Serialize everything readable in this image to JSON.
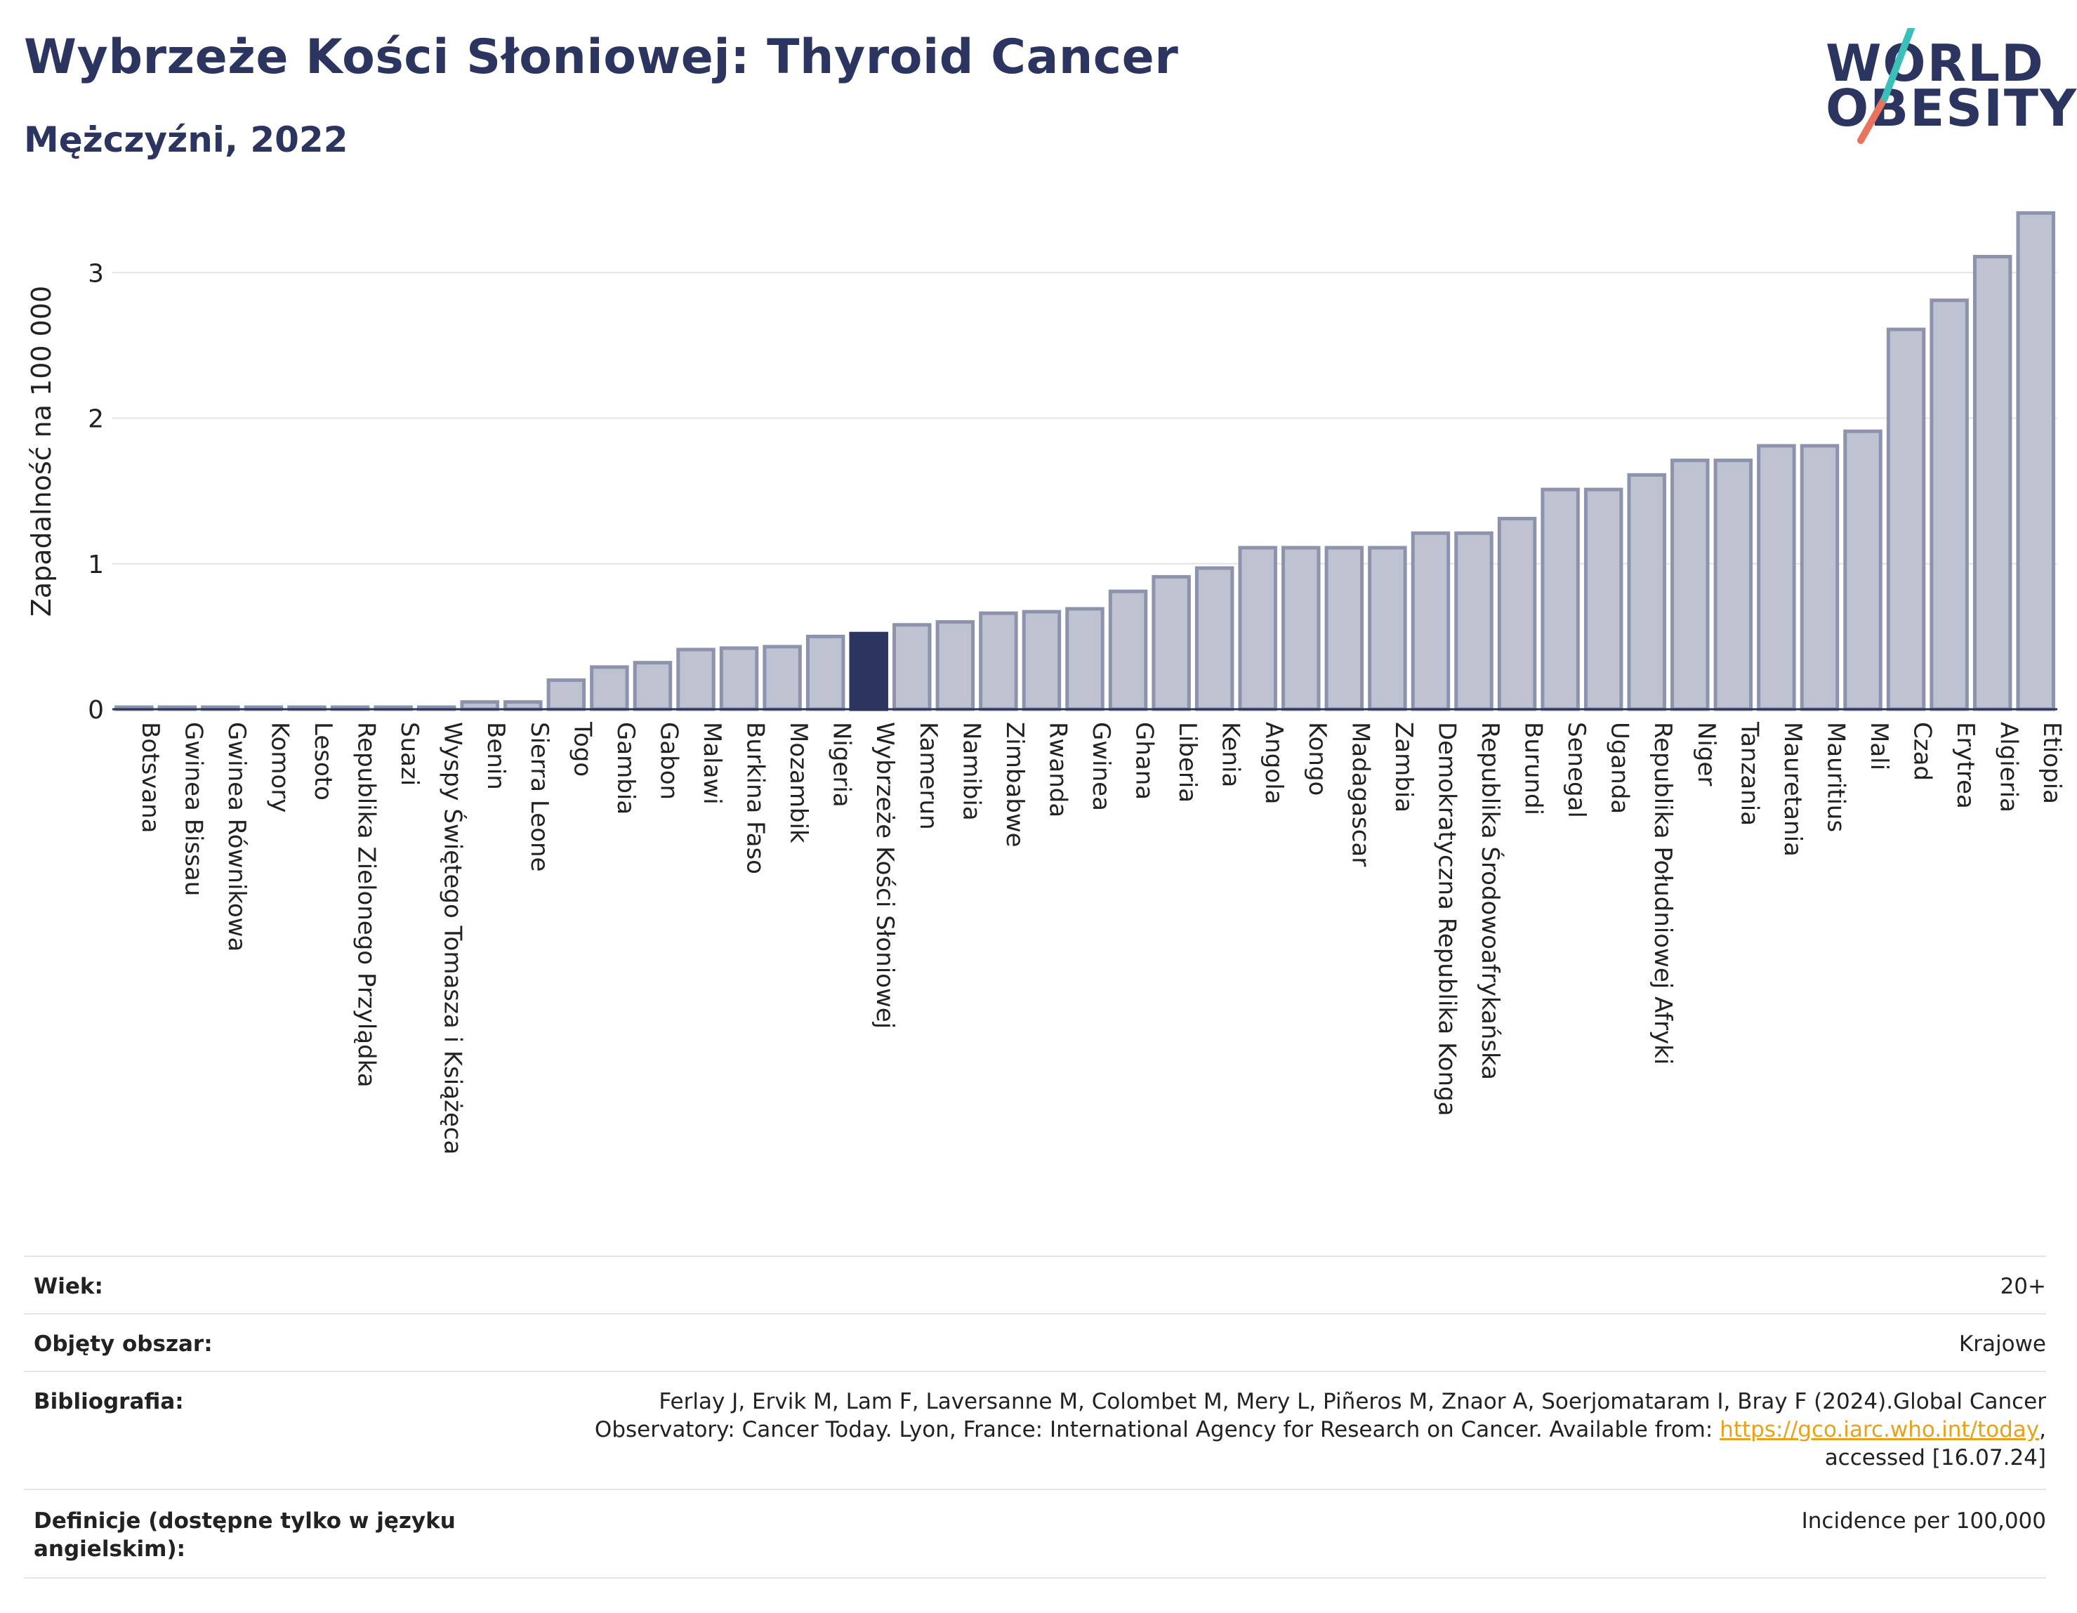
{
  "header": {
    "title": "Wybrzeże Kości Słoniowej: Thyroid Cancer",
    "subtitle": "Mężczyźni, 2022"
  },
  "logo": {
    "line1": "WORLD",
    "line2": "OBESITY",
    "colors": {
      "text": "#2b3560",
      "slash_teal": "#3bbfb9",
      "slash_coral": "#e8735e"
    }
  },
  "colors": {
    "bar_fill": "#bfc3d1",
    "bar_stroke": "#8d93ad",
    "highlight": "#2b3560"
  },
  "chart_data": {
    "type": "bar",
    "title": "Wybrzeże Kości Słoniowej: Thyroid Cancer",
    "ylabel": "Zapadalność na 100 000",
    "xlabel": "",
    "ylim": [
      0,
      3.45
    ],
    "yticks": [
      0,
      1,
      2,
      3
    ],
    "grid": true,
    "highlight": "Wybrzeże Kości Słoniowej",
    "categories": [
      "Botsvana",
      "Gwinea Bissau",
      "Gwinea Równikowa",
      "Komory",
      "Lesoto",
      "Republika Zielonego Przylądka",
      "Suazi",
      "Wyspy Świętego Tomasza i Książęca",
      "Benin",
      "Sierra Leone",
      "Togo",
      "Gambia",
      "Gabon",
      "Malawi",
      "Burkina Faso",
      "Mozambik",
      "Nigeria",
      "Wybrzeże Kości Słoniowej",
      "Kamerun",
      "Namibia",
      "Zimbabwe",
      "Rwanda",
      "Gwinea",
      "Ghana",
      "Liberia",
      "Kenia",
      "Angola",
      "Kongo",
      "Madagascar",
      "Zambia",
      "Demokratyczna Republika Konga",
      "Republika Środowoafrykańska",
      "Burundi",
      "Senegal",
      "Uganda",
      "Republika Południowej Afryki",
      "Niger",
      "Tanzania",
      "Mauretania",
      "Mauritius",
      "Mali",
      "Czad",
      "Erytrea",
      "Algieria",
      "Etiopia"
    ],
    "values": [
      0.01,
      0.01,
      0.01,
      0.01,
      0.01,
      0.01,
      0.01,
      0.01,
      0.05,
      0.05,
      0.2,
      0.29,
      0.32,
      0.41,
      0.42,
      0.43,
      0.5,
      0.52,
      0.58,
      0.6,
      0.66,
      0.67,
      0.69,
      0.81,
      0.91,
      0.97,
      1.11,
      1.11,
      1.11,
      1.11,
      1.21,
      1.21,
      1.31,
      1.51,
      1.51,
      1.61,
      1.71,
      1.71,
      1.81,
      1.81,
      1.91,
      2.61,
      2.81,
      3.11,
      3.41
    ]
  },
  "meta": {
    "rows": [
      {
        "label": "Wiek:",
        "value": "20+"
      },
      {
        "label": "Objęty obszar:",
        "value": "Krajowe"
      },
      {
        "label": "Bibliografia:",
        "value_line1": "Ferlay J, Ervik M, Lam F, Laversanne M, Colombet M, Mery L, Piñeros M, Znaor A, Soerjomataram I, Bray F (2024).Global Cancer",
        "value_line2_pre": "Observatory: Cancer Today. Lyon, France: International Agency for Research on Cancer. Available from: ",
        "value_link": "https://gco.iarc.who.int/today",
        "value_line2_post": ",",
        "value_line3": "accessed [16.07.24]"
      },
      {
        "label_line1": "Definicje (dostępne tylko w języku",
        "label_line2": "angielskim):",
        "value": "Incidence per 100,000"
      }
    ]
  }
}
